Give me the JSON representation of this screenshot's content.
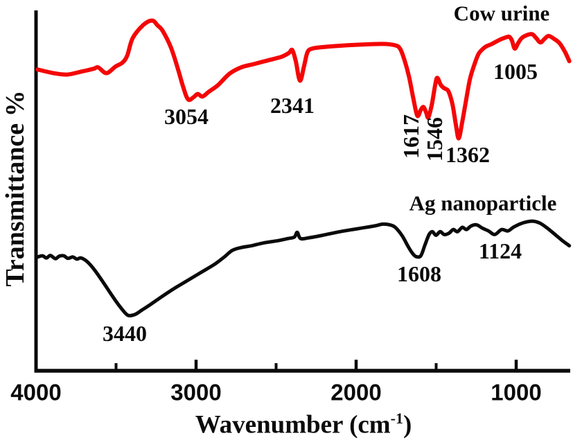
{
  "chart_data": {
    "type": "line",
    "title": "",
    "xlabel": {
      "text": "Wavenumber (cm-1)",
      "main": "Wavenumber (cm",
      "sup": "-1",
      "close": ")"
    },
    "ylabel": "Transmittance %",
    "x_range": [
      4000,
      660
    ],
    "x_axis_reversed": true,
    "grid": "off",
    "y_axis": {
      "tick_labels_shown": false,
      "units": "arbitrary offset-stacked transmittance"
    },
    "x_ticks": [
      {
        "label": "4000",
        "wn": 4000,
        "mark": false
      },
      {
        "label": "3000",
        "wn": 3000,
        "mark": true
      },
      {
        "label": "2000",
        "wn": 2000,
        "mark": true
      },
      {
        "label": "1000",
        "wn": 1000,
        "mark": true
      }
    ],
    "x_minor_ticks": [
      3500,
      2500,
      1500
    ],
    "legend": {
      "position": "inline-above-curves",
      "entries": [
        "Cow urine",
        "Ag nanoparticle"
      ]
    },
    "series": [
      {
        "name": "Cow urine",
        "color": "#f40606",
        "peaks_cm1": [
          3054,
          2341,
          1617,
          1546,
          1362,
          1005
        ],
        "points": [
          [
            3990,
            83.6
          ],
          [
            3892,
            82.6
          ],
          [
            3806,
            82.2
          ],
          [
            3719,
            83.0
          ],
          [
            3640,
            83.8
          ],
          [
            3612,
            84.2
          ],
          [
            3560,
            82.6
          ],
          [
            3504,
            84.4
          ],
          [
            3460,
            85.5
          ],
          [
            3430,
            87.5
          ],
          [
            3396,
            92.3
          ],
          [
            3331,
            95.9
          ],
          [
            3275,
            97.2
          ],
          [
            3240,
            95.8
          ],
          [
            3210,
            94.4
          ],
          [
            3158,
            89.8
          ],
          [
            3115,
            84.0
          ],
          [
            3081,
            78.8
          ],
          [
            3050,
            75.3
          ],
          [
            3016,
            75.9
          ],
          [
            2990,
            76.8
          ],
          [
            2960,
            76.1
          ],
          [
            2921,
            77.4
          ],
          [
            2865,
            79.2
          ],
          [
            2792,
            82.4
          ],
          [
            2718,
            84.2
          ],
          [
            2640,
            85.1
          ],
          [
            2554,
            86.1
          ],
          [
            2468,
            87.1
          ],
          [
            2420,
            88.2
          ],
          [
            2399,
            89.0
          ],
          [
            2377,
            85.9
          ],
          [
            2351,
            80.5
          ],
          [
            2325,
            84.6
          ],
          [
            2304,
            88.4
          ],
          [
            2274,
            89.4
          ],
          [
            2209,
            89.8
          ],
          [
            2101,
            90.2
          ],
          [
            1972,
            90.5
          ],
          [
            1834,
            90.7
          ],
          [
            1756,
            90.3
          ],
          [
            1726,
            89.4
          ],
          [
            1700,
            86.5
          ],
          [
            1670,
            81.7
          ],
          [
            1644,
            75.9
          ],
          [
            1618,
            70.8
          ],
          [
            1596,
            72.4
          ],
          [
            1579,
            73.2
          ],
          [
            1562,
            71.6
          ],
          [
            1549,
            70.3
          ],
          [
            1527,
            73.9
          ],
          [
            1506,
            79.3
          ],
          [
            1493,
            81.3
          ],
          [
            1471,
            79.3
          ],
          [
            1450,
            78.4
          ],
          [
            1424,
            77.6
          ],
          [
            1398,
            73.9
          ],
          [
            1376,
            68.1
          ],
          [
            1359,
            64.5
          ],
          [
            1337,
            69.1
          ],
          [
            1316,
            74.3
          ],
          [
            1290,
            80.7
          ],
          [
            1264,
            84.6
          ],
          [
            1234,
            88.0
          ],
          [
            1195,
            89.8
          ],
          [
            1152,
            90.7
          ],
          [
            1100,
            91.9
          ],
          [
            1065,
            92.5
          ],
          [
            1044,
            92.7
          ],
          [
            1027,
            91.7
          ],
          [
            1009,
            89.4
          ],
          [
            988,
            90.9
          ],
          [
            966,
            92.3
          ],
          [
            936,
            93.1
          ],
          [
            901,
            93.4
          ],
          [
            875,
            92.3
          ],
          [
            849,
            91.1
          ],
          [
            823,
            92.1
          ],
          [
            798,
            92.9
          ],
          [
            763,
            92.1
          ],
          [
            729,
            90.9
          ],
          [
            694,
            88.4
          ],
          [
            668,
            85.9
          ]
        ]
      },
      {
        "name": "Ag nanoparticle",
        "color": "#0a0a0a",
        "peaks_cm1": [
          3440,
          1608,
          1124
        ],
        "points": [
          [
            3995,
            31.5
          ],
          [
            3960,
            31.9
          ],
          [
            3935,
            31.3
          ],
          [
            3910,
            32.0
          ],
          [
            3879,
            31.1
          ],
          [
            3855,
            31.8
          ],
          [
            3827,
            31.9
          ],
          [
            3800,
            31.2
          ],
          [
            3771,
            31.6
          ],
          [
            3745,
            31.0
          ],
          [
            3719,
            31.3
          ],
          [
            3681,
            30.3
          ],
          [
            3642,
            28.4
          ],
          [
            3598,
            25.7
          ],
          [
            3551,
            22.6
          ],
          [
            3504,
            19.5
          ],
          [
            3465,
            17.2
          ],
          [
            3426,
            15.4
          ],
          [
            3383,
            15.6
          ],
          [
            3340,
            16.8
          ],
          [
            3288,
            18.3
          ],
          [
            3223,
            20.3
          ],
          [
            3145,
            22.6
          ],
          [
            3059,
            24.9
          ],
          [
            2973,
            27.2
          ],
          [
            2886,
            29.5
          ],
          [
            2826,
            31.5
          ],
          [
            2774,
            33.4
          ],
          [
            2718,
            34.2
          ],
          [
            2653,
            34.7
          ],
          [
            2576,
            35.5
          ],
          [
            2489,
            36.1
          ],
          [
            2425,
            36.7
          ],
          [
            2386,
            37.1
          ],
          [
            2368,
            38.4
          ],
          [
            2347,
            36.7
          ],
          [
            2295,
            36.9
          ],
          [
            2209,
            37.6
          ],
          [
            2101,
            38.6
          ],
          [
            1993,
            39.4
          ],
          [
            1885,
            40.2
          ],
          [
            1833,
            40.7
          ],
          [
            1790,
            40.5
          ],
          [
            1756,
            39.8
          ],
          [
            1713,
            37.5
          ],
          [
            1674,
            34.4
          ],
          [
            1648,
            32.6
          ],
          [
            1626,
            31.7
          ],
          [
            1596,
            31.9
          ],
          [
            1570,
            34.9
          ],
          [
            1544,
            37.8
          ],
          [
            1523,
            38.6
          ],
          [
            1501,
            37.6
          ],
          [
            1475,
            38.6
          ],
          [
            1450,
            37.8
          ],
          [
            1419,
            38.2
          ],
          [
            1393,
            39.2
          ],
          [
            1367,
            38.6
          ],
          [
            1337,
            39.8
          ],
          [
            1311,
            39.2
          ],
          [
            1281,
            40.2
          ],
          [
            1247,
            40.5
          ],
          [
            1212,
            39.6
          ],
          [
            1173,
            38.8
          ],
          [
            1134,
            37.8
          ],
          [
            1091,
            39.2
          ],
          [
            1052,
            38.8
          ],
          [
            1018,
            39.8
          ],
          [
            979,
            40.7
          ],
          [
            935,
            41.3
          ],
          [
            892,
            41.5
          ],
          [
            849,
            40.9
          ],
          [
            806,
            39.6
          ],
          [
            762,
            38.0
          ],
          [
            711,
            36.1
          ],
          [
            668,
            34.7
          ]
        ]
      }
    ],
    "annotations": [
      {
        "text": "3054",
        "series": "Cow urine",
        "wn": 3060,
        "y": 70.5,
        "rot": 0
      },
      {
        "text": "2341",
        "series": "Cow urine",
        "wn": 2400,
        "y": 73.6,
        "rot": 0
      },
      {
        "text": "1617",
        "series": "Cow urine",
        "wn": 1656,
        "y": 65.0,
        "rot": -90
      },
      {
        "text": "1546",
        "series": "Cow urine",
        "wn": 1509,
        "y": 64.3,
        "rot": -90
      },
      {
        "text": "1362",
        "series": "Cow urine",
        "wn": 1302,
        "y": 60.0,
        "rot": 0
      },
      {
        "text": "1005",
        "series": "Cow urine",
        "wn": 1004,
        "y": 83.0,
        "rot": 0
      },
      {
        "text": "3440",
        "series": "Ag nanoparticle",
        "wn": 3448,
        "y": 10.3,
        "rot": 0
      },
      {
        "text": "1608",
        "series": "Ag nanoparticle",
        "wn": 1604,
        "y": 27.0,
        "rot": 0
      },
      {
        "text": "1124",
        "series": "Ag nanoparticle",
        "wn": 1099,
        "y": 33.2,
        "rot": 0
      }
    ],
    "axis_color": "#0b0b0b"
  }
}
